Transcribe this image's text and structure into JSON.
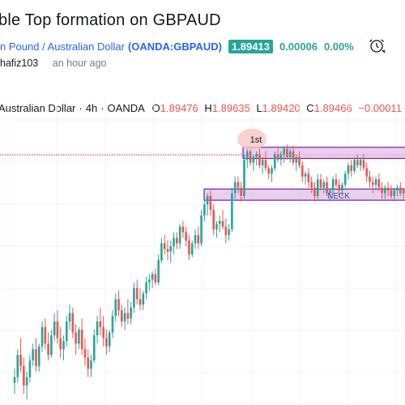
{
  "idea": {
    "title": "ble Top formation on GBPAUD",
    "symbol_name": "n Pound / Australian Dollar",
    "symbol_code": "(OANDA:GBPAUD)",
    "price": "1.89413",
    "change": "0.00006",
    "change_pct": "0.00%",
    "author": "hafiz103",
    "time_ago": "an hour ago"
  },
  "legend": {
    "name": "Australian Dollar",
    "interval": "4h",
    "exchange": "OANDA",
    "open_label": "O",
    "open": "1.89476",
    "high_label": "H",
    "high": "1.89635",
    "low_label": "L",
    "low": "1.89420",
    "close_label": "C",
    "close": "1.89466",
    "change": "−0.00011",
    "change_pct": "(−"
  },
  "annotations": {
    "first_top": "1st",
    "neck": "NECK"
  },
  "colors": {
    "up": "#26a69a",
    "down": "#ef5350",
    "zone_fill": "#e1bee7",
    "zone_stroke": "#7b1fa2",
    "resistance_line": "#c62828"
  },
  "chart_data": {
    "type": "candlestick",
    "ohlc": [
      [
        1.86,
        1.865,
        1.856,
        1.862
      ],
      [
        1.862,
        1.872,
        1.86,
        1.87
      ],
      [
        1.87,
        1.876,
        1.864,
        1.866
      ],
      [
        1.866,
        1.869,
        1.856,
        1.859
      ],
      [
        1.859,
        1.864,
        1.854,
        1.862
      ],
      [
        1.862,
        1.87,
        1.86,
        1.868
      ],
      [
        1.868,
        1.874,
        1.866,
        1.872
      ],
      [
        1.872,
        1.876,
        1.864,
        1.866
      ],
      [
        1.866,
        1.874,
        1.864,
        1.873
      ],
      [
        1.873,
        1.882,
        1.871,
        1.88
      ],
      [
        1.88,
        1.883,
        1.872,
        1.874
      ],
      [
        1.874,
        1.878,
        1.868,
        1.87
      ],
      [
        1.87,
        1.879,
        1.869,
        1.877
      ],
      [
        1.877,
        1.885,
        1.875,
        1.882
      ],
      [
        1.882,
        1.886,
        1.874,
        1.876
      ],
      [
        1.876,
        1.88,
        1.869,
        1.872
      ],
      [
        1.872,
        1.877,
        1.868,
        1.875
      ],
      [
        1.875,
        1.884,
        1.873,
        1.882
      ],
      [
        1.882,
        1.888,
        1.879,
        1.885
      ],
      [
        1.885,
        1.887,
        1.876,
        1.878
      ],
      [
        1.878,
        1.881,
        1.87,
        1.874
      ],
      [
        1.874,
        1.88,
        1.872,
        1.879
      ],
      [
        1.879,
        1.883,
        1.87,
        1.872
      ],
      [
        1.872,
        1.876,
        1.866,
        1.869
      ],
      [
        1.869,
        1.872,
        1.862,
        1.865
      ],
      [
        1.865,
        1.87,
        1.862,
        1.868
      ],
      [
        1.868,
        1.879,
        1.867,
        1.877
      ],
      [
        1.877,
        1.884,
        1.874,
        1.882
      ],
      [
        1.882,
        1.887,
        1.877,
        1.88
      ],
      [
        1.88,
        1.884,
        1.873,
        1.876
      ],
      [
        1.876,
        1.879,
        1.87,
        1.873
      ],
      [
        1.873,
        1.879,
        1.871,
        1.878
      ],
      [
        1.878,
        1.886,
        1.876,
        1.884
      ],
      [
        1.884,
        1.892,
        1.882,
        1.89
      ],
      [
        1.89,
        1.893,
        1.884,
        1.886
      ],
      [
        1.886,
        1.888,
        1.88,
        1.882
      ],
      [
        1.882,
        1.887,
        1.879,
        1.885
      ],
      [
        1.885,
        1.89,
        1.881,
        1.883
      ],
      [
        1.883,
        1.889,
        1.881,
        1.887
      ],
      [
        1.887,
        1.896,
        1.885,
        1.894
      ],
      [
        1.894,
        1.897,
        1.888,
        1.89
      ],
      [
        1.89,
        1.894,
        1.886,
        1.888
      ],
      [
        1.888,
        1.893,
        1.886,
        1.892
      ],
      [
        1.892,
        1.898,
        1.89,
        1.896
      ],
      [
        1.896,
        1.899,
        1.893,
        1.897
      ],
      [
        1.897,
        1.9,
        1.894,
        1.899
      ],
      [
        1.899,
        1.901,
        1.895,
        1.896
      ],
      [
        1.896,
        1.906,
        1.895,
        1.904
      ],
      [
        1.904,
        1.912,
        1.903,
        1.91
      ],
      [
        1.91,
        1.913,
        1.906,
        1.908
      ],
      [
        1.908,
        1.911,
        1.904,
        1.907
      ],
      [
        1.907,
        1.911,
        1.903,
        1.909
      ],
      [
        1.909,
        1.914,
        1.906,
        1.912
      ],
      [
        1.912,
        1.914,
        1.908,
        1.91
      ],
      [
        1.91,
        1.917,
        1.908,
        1.916
      ],
      [
        1.916,
        1.918,
        1.912,
        1.914
      ],
      [
        1.914,
        1.916,
        1.909,
        1.911
      ],
      [
        1.911,
        1.913,
        1.904,
        1.906
      ],
      [
        1.906,
        1.911,
        1.905,
        1.91
      ],
      [
        1.91,
        1.915,
        1.908,
        1.913
      ],
      [
        1.913,
        1.916,
        1.908,
        1.91
      ],
      [
        1.91,
        1.922,
        1.909,
        1.92
      ],
      [
        1.92,
        1.926,
        1.918,
        1.924
      ],
      [
        1.924,
        1.928,
        1.92,
        1.927
      ],
      [
        1.927,
        1.929,
        1.92,
        1.922
      ],
      [
        1.922,
        1.924,
        1.913,
        1.915
      ],
      [
        1.915,
        1.918,
        1.912,
        1.917
      ],
      [
        1.917,
        1.92,
        1.914,
        1.918
      ],
      [
        1.918,
        1.922,
        1.915,
        1.916
      ],
      [
        1.916,
        1.919,
        1.91,
        1.913
      ],
      [
        1.913,
        1.917,
        1.911,
        1.915
      ],
      [
        1.915,
        1.93,
        1.914,
        1.928
      ],
      [
        1.928,
        1.934,
        1.926,
        1.932
      ],
      [
        1.932,
        1.934,
        1.928,
        1.93
      ],
      [
        1.93,
        1.932,
        1.925,
        1.927
      ],
      [
        1.927,
        1.942,
        1.926,
        1.94
      ],
      [
        1.94,
        1.945,
        1.937,
        1.943
      ],
      [
        1.943,
        1.944,
        1.938,
        1.939
      ],
      [
        1.939,
        1.942,
        1.936,
        1.941
      ],
      [
        1.941,
        1.943,
        1.938,
        1.942
      ],
      [
        1.942,
        1.944,
        1.937,
        1.938
      ],
      [
        1.938,
        1.941,
        1.935,
        1.94
      ],
      [
        1.94,
        1.943,
        1.936,
        1.937
      ],
      [
        1.937,
        1.938,
        1.933,
        1.935
      ],
      [
        1.935,
        1.938,
        1.932,
        1.937
      ],
      [
        1.937,
        1.943,
        1.936,
        1.942
      ],
      [
        1.942,
        1.944,
        1.939,
        1.94
      ],
      [
        1.94,
        1.943,
        1.938,
        1.942
      ],
      [
        1.942,
        1.945,
        1.939,
        1.944
      ],
      [
        1.944,
        1.9455,
        1.94,
        1.941
      ],
      [
        1.941,
        1.944,
        1.939,
        1.943
      ],
      [
        1.943,
        1.945,
        1.938,
        1.939
      ],
      [
        1.939,
        1.942,
        1.936,
        1.941
      ],
      [
        1.941,
        1.943,
        1.937,
        1.938
      ],
      [
        1.938,
        1.9395,
        1.932,
        1.934
      ],
      [
        1.934,
        1.936,
        1.931,
        1.935
      ],
      [
        1.935,
        1.937,
        1.93,
        1.932
      ],
      [
        1.932,
        1.934,
        1.928,
        1.93
      ],
      [
        1.93,
        1.932,
        1.925,
        1.927
      ],
      [
        1.927,
        1.935,
        1.926,
        1.933
      ],
      [
        1.933,
        1.935,
        1.929,
        1.93
      ],
      [
        1.93,
        1.933,
        1.928,
        1.932
      ],
      [
        1.932,
        1.934,
        1.927,
        1.928
      ],
      [
        1.928,
        1.93,
        1.925,
        1.929
      ],
      [
        1.929,
        1.934,
        1.928,
        1.933
      ],
      [
        1.933,
        1.935,
        1.93,
        1.931
      ],
      [
        1.931,
        1.933,
        1.927,
        1.929
      ],
      [
        1.929,
        1.932,
        1.927,
        1.931
      ],
      [
        1.931,
        1.936,
        1.93,
        1.935
      ],
      [
        1.935,
        1.939,
        1.933,
        1.938
      ],
      [
        1.938,
        1.94,
        1.934,
        1.936
      ],
      [
        1.936,
        1.941,
        1.935,
        1.94
      ],
      [
        1.94,
        1.942,
        1.937,
        1.938
      ],
      [
        1.938,
        1.941,
        1.936,
        1.94
      ],
      [
        1.94,
        1.942,
        1.936,
        1.937
      ],
      [
        1.937,
        1.939,
        1.932,
        1.934
      ],
      [
        1.934,
        1.936,
        1.93,
        1.932
      ],
      [
        1.932,
        1.934,
        1.928,
        1.931
      ],
      [
        1.931,
        1.934,
        1.929,
        1.933
      ],
      [
        1.933,
        1.935,
        1.929,
        1.93
      ],
      [
        1.93,
        1.932,
        1.926,
        1.928
      ],
      [
        1.928,
        1.931,
        1.926,
        1.93
      ],
      [
        1.93,
        1.932,
        1.927,
        1.929
      ],
      [
        1.929,
        1.931,
        1.926,
        1.927
      ],
      [
        1.927,
        1.93,
        1.925,
        1.929
      ],
      [
        1.929,
        1.931,
        1.927,
        1.93
      ],
      [
        1.93,
        1.932,
        1.927,
        1.928
      ],
      [
        1.928,
        1.93,
        1.926,
        1.929
      ],
      [
        1.929,
        1.931,
        1.927,
        1.928
      ]
    ],
    "top_zone": [
      1.9405,
      1.9445
    ],
    "neck_zone": [
      1.9255,
      1.9295
    ],
    "resistance_level": 1.9418,
    "ylim": [
      1.852,
      1.952
    ]
  }
}
